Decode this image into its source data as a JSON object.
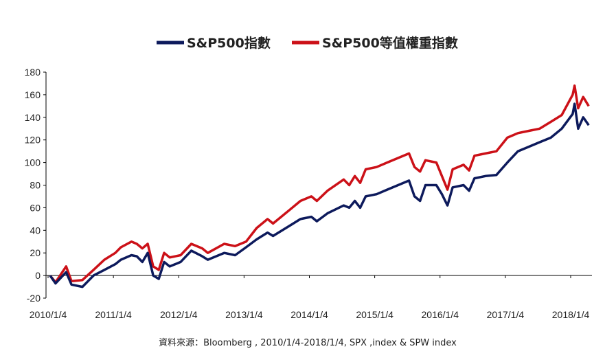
{
  "chart_data": {
    "type": "line",
    "title": "",
    "xlabel": "",
    "ylabel": "",
    "ylim": [
      -20,
      180
    ],
    "yticks": [
      -20,
      0,
      20,
      40,
      60,
      80,
      100,
      120,
      140,
      160,
      180
    ],
    "xticks": [
      "2010/1/4",
      "2011/1/4",
      "2012/1/4",
      "2013/1/4",
      "2014/1/4",
      "2015/1/4",
      "2016/1/4",
      "2017/1/4",
      "2018/1/4"
    ],
    "grid": false,
    "legend_position": "top-center",
    "source": "資料來源：Bloomberg , 2010/1/4-2018/1/4, SPX ,index & SPW index",
    "x": [
      "2010-01",
      "2010-02",
      "2010-04",
      "2010-05",
      "2010-07",
      "2010-09",
      "2010-11",
      "2011-01",
      "2011-02",
      "2011-04",
      "2011-05",
      "2011-06",
      "2011-07",
      "2011-08",
      "2011-09",
      "2011-10",
      "2011-11",
      "2012-01",
      "2012-03",
      "2012-05",
      "2012-06",
      "2012-09",
      "2012-11",
      "2013-01",
      "2013-03",
      "2013-05",
      "2013-06",
      "2013-09",
      "2013-11",
      "2014-01",
      "2014-02",
      "2014-04",
      "2014-07",
      "2014-08",
      "2014-09",
      "2014-10",
      "2014-11",
      "2015-01",
      "2015-03",
      "2015-05",
      "2015-07",
      "2015-08",
      "2015-09",
      "2015-10",
      "2015-12",
      "2016-01",
      "2016-02",
      "2016-03",
      "2016-05",
      "2016-06",
      "2016-07",
      "2016-09",
      "2016-11",
      "2017-01",
      "2017-03",
      "2017-05",
      "2017-07",
      "2017-09",
      "2017-11",
      "2018-01",
      "2018-01-26",
      "2018-02",
      "2018-03",
      "2018-04"
    ],
    "series": [
      {
        "name": "S&P500指數",
        "color": "#0d1a5c",
        "values": [
          0,
          -7,
          3,
          -8,
          -10,
          0,
          5,
          10,
          14,
          18,
          17,
          12,
          20,
          0,
          -3,
          12,
          8,
          12,
          22,
          17,
          14,
          20,
          18,
          25,
          32,
          38,
          35,
          44,
          50,
          52,
          48,
          55,
          62,
          60,
          66,
          60,
          70,
          72,
          76,
          80,
          84,
          70,
          66,
          80,
          80,
          72,
          62,
          78,
          80,
          75,
          86,
          88,
          89,
          100,
          110,
          114,
          118,
          122,
          130,
          143,
          152,
          130,
          140,
          133
        ]
      },
      {
        "name": "S&P500等值權重指數",
        "color": "#cc1118",
        "values": [
          0,
          -6,
          8,
          -5,
          -4,
          5,
          14,
          20,
          25,
          30,
          28,
          24,
          28,
          8,
          5,
          20,
          16,
          18,
          28,
          24,
          20,
          28,
          26,
          30,
          42,
          50,
          46,
          58,
          66,
          70,
          66,
          75,
          85,
          80,
          88,
          82,
          94,
          96,
          100,
          104,
          108,
          96,
          92,
          102,
          100,
          88,
          76,
          94,
          98,
          93,
          106,
          108,
          110,
          122,
          126,
          128,
          130,
          136,
          142,
          160,
          168,
          148,
          158,
          150
        ]
      }
    ]
  }
}
